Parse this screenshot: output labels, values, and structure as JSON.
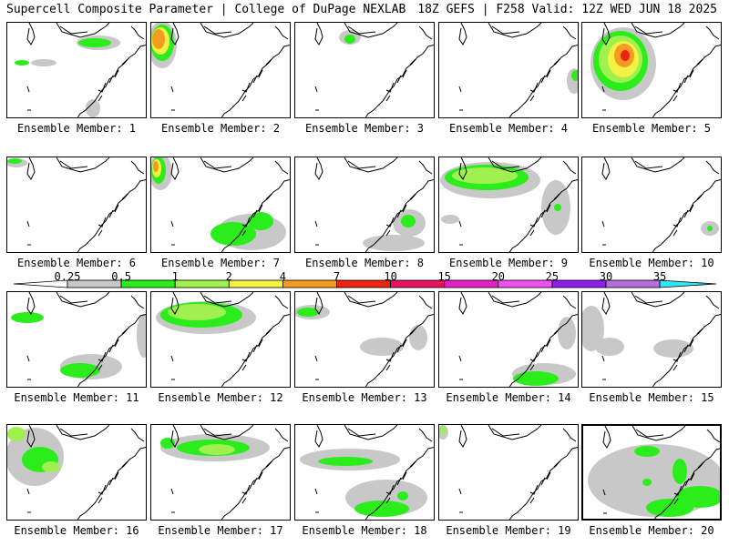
{
  "header": {
    "title": "Supercell Composite Parameter | College of DuPage NEXLAB",
    "run_info": "18Z GEFS | F258 Valid: 12Z WED JUN 18 2025"
  },
  "colorbar": {
    "labels": [
      "0.25",
      "0.5",
      "1",
      "2",
      "4",
      "7",
      "10",
      "15",
      "20",
      "25",
      "30",
      "35"
    ],
    "colors": [
      "#c8c8c8",
      "#2bed1c",
      "#a0f050",
      "#f2f244",
      "#f59b21",
      "#ec2213",
      "#e41460",
      "#e61ec8",
      "#f050f0",
      "#8c1ee8",
      "#b46ee0",
      "#30e6f0"
    ]
  },
  "panels": [
    {
      "label": "Ensemble Member: 1"
    },
    {
      "label": "Ensemble Member: 2"
    },
    {
      "label": "Ensemble Member: 3"
    },
    {
      "label": "Ensemble Member: 4"
    },
    {
      "label": "Ensemble Member: 5"
    },
    {
      "label": "Ensemble Member: 6"
    },
    {
      "label": "Ensemble Member: 7"
    },
    {
      "label": "Ensemble Member: 8"
    },
    {
      "label": "Ensemble Member: 9"
    },
    {
      "label": "Ensemble Member: 10"
    },
    {
      "label": "Ensemble Member: 11"
    },
    {
      "label": "Ensemble Member: 12"
    },
    {
      "label": "Ensemble Member: 13"
    },
    {
      "label": "Ensemble Member: 14"
    },
    {
      "label": "Ensemble Member: 15"
    },
    {
      "label": "Ensemble Member: 16"
    },
    {
      "label": "Ensemble Member: 17"
    },
    {
      "label": "Ensemble Member: 18"
    },
    {
      "label": "Ensemble Member: 19"
    },
    {
      "label": "Ensemble Member: 20"
    }
  ]
}
